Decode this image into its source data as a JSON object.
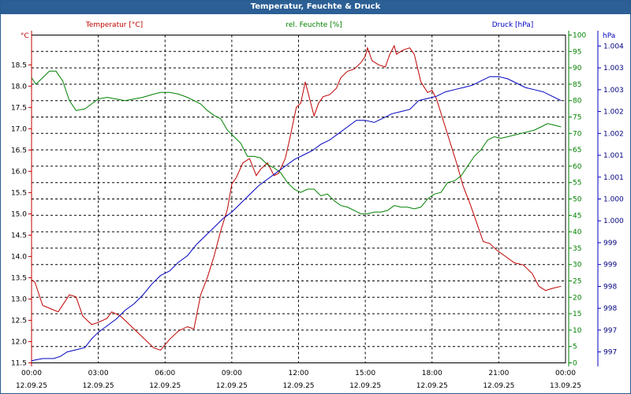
{
  "title": "Temperatur, Feuchte & Druck",
  "colors": {
    "temperature": "#c00000",
    "humidity": "#008000",
    "pressure": "#0000c0",
    "grid": "#000000",
    "titlebar": "#2b5f95"
  },
  "chart_data": {
    "type": "line",
    "title": "Temperatur, Feuchte & Druck",
    "x_ticks": [
      {
        "hour": 0,
        "time": "00:00",
        "date": "12.09.25"
      },
      {
        "hour": 3,
        "time": "03:00",
        "date": "12.09.25"
      },
      {
        "hour": 6,
        "time": "06:00",
        "date": "12.09.25"
      },
      {
        "hour": 9,
        "time": "09:00",
        "date": "12.09.25"
      },
      {
        "hour": 12,
        "time": "12:00",
        "date": "12.09.25"
      },
      {
        "hour": 15,
        "time": "15:00",
        "date": "12.09.25"
      },
      {
        "hour": 18,
        "time": "18:00",
        "date": "12.09.25"
      },
      {
        "hour": 21,
        "time": "21:00",
        "date": "12.09.25"
      },
      {
        "hour": 24,
        "time": "00:00",
        "date": "13.09.25"
      }
    ],
    "xlim": [
      0,
      24
    ],
    "axes": {
      "temperature": {
        "label": "Temperatur [°C]",
        "unit": "°C",
        "range": [
          11.5,
          19.2
        ],
        "ticks": [
          "11.5",
          "12.0",
          "12.5",
          "13.0",
          "13.5",
          "14.0",
          "14.5",
          "15.0",
          "15.5",
          "16.0",
          "16.5",
          "17.0",
          "17.5",
          "18.0",
          "18.5"
        ]
      },
      "humidity": {
        "label": "rel. Feuchte [%]",
        "unit": "%",
        "range": [
          0,
          100
        ],
        "ticks": [
          "0",
          "5",
          "10",
          "15",
          "20",
          "25",
          "30",
          "35",
          "40",
          "45",
          "50",
          "55",
          "60",
          "65",
          "70",
          "75",
          "80",
          "85",
          "90",
          "95",
          "100"
        ]
      },
      "pressure": {
        "label": "Druck [hPa]",
        "unit": "hPa",
        "range": [
          996.75,
          1004.25
        ],
        "ticks": [
          "997",
          "997",
          "998",
          "998",
          "999",
          "999",
          "1.000",
          "1.000",
          "1.001",
          "1.001",
          "1.002",
          "1.002",
          "1.003",
          "1.003",
          "1.004"
        ]
      }
    },
    "series": [
      {
        "name": "Temperatur",
        "axis": "temperature",
        "color": "#c00000",
        "points": [
          [
            0,
            13.45
          ],
          [
            0.15,
            13.4
          ],
          [
            0.5,
            12.85
          ],
          [
            1.2,
            12.7
          ],
          [
            1.7,
            13.1
          ],
          [
            2.0,
            13.05
          ],
          [
            2.3,
            12.6
          ],
          [
            2.7,
            12.4
          ],
          [
            3.0,
            12.45
          ],
          [
            3.4,
            12.55
          ],
          [
            3.6,
            12.7
          ],
          [
            4.0,
            12.6
          ],
          [
            4.4,
            12.4
          ],
          [
            5.0,
            12.1
          ],
          [
            5.5,
            11.85
          ],
          [
            5.8,
            11.8
          ],
          [
            6.2,
            12.05
          ],
          [
            6.6,
            12.25
          ],
          [
            7.0,
            12.35
          ],
          [
            7.3,
            12.3
          ],
          [
            7.6,
            13.1
          ],
          [
            7.9,
            13.5
          ],
          [
            8.2,
            14.0
          ],
          [
            8.5,
            14.6
          ],
          [
            8.8,
            15.1
          ],
          [
            9.0,
            15.7
          ],
          [
            9.2,
            15.85
          ],
          [
            9.5,
            16.2
          ],
          [
            9.8,
            16.3
          ],
          [
            10.1,
            15.9
          ],
          [
            10.3,
            16.05
          ],
          [
            10.6,
            16.2
          ],
          [
            10.9,
            15.9
          ],
          [
            11.1,
            15.95
          ],
          [
            11.4,
            16.3
          ],
          [
            11.6,
            16.75
          ],
          [
            11.9,
            17.5
          ],
          [
            12.1,
            17.6
          ],
          [
            12.3,
            18.1
          ],
          [
            12.5,
            17.7
          ],
          [
            12.7,
            17.3
          ],
          [
            12.9,
            17.6
          ],
          [
            13.1,
            17.75
          ],
          [
            13.4,
            17.8
          ],
          [
            13.7,
            17.95
          ],
          [
            13.9,
            18.2
          ],
          [
            14.2,
            18.35
          ],
          [
            14.5,
            18.4
          ],
          [
            14.8,
            18.55
          ],
          [
            15.0,
            18.7
          ],
          [
            15.1,
            18.9
          ],
          [
            15.3,
            18.6
          ],
          [
            15.6,
            18.5
          ],
          [
            15.9,
            18.45
          ],
          [
            16.1,
            18.75
          ],
          [
            16.3,
            18.95
          ],
          [
            16.4,
            18.75
          ],
          [
            16.7,
            18.85
          ],
          [
            17.0,
            18.9
          ],
          [
            17.2,
            18.75
          ],
          [
            17.5,
            18.1
          ],
          [
            17.8,
            17.85
          ],
          [
            18.0,
            17.9
          ],
          [
            18.2,
            17.7
          ],
          [
            18.5,
            17.2
          ],
          [
            18.8,
            16.7
          ],
          [
            19.1,
            16.2
          ],
          [
            19.4,
            15.65
          ],
          [
            19.7,
            15.25
          ],
          [
            20.0,
            14.8
          ],
          [
            20.3,
            14.35
          ],
          [
            20.6,
            14.3
          ],
          [
            20.9,
            14.15
          ],
          [
            21.3,
            14.0
          ],
          [
            21.7,
            13.85
          ],
          [
            22.1,
            13.8
          ],
          [
            22.5,
            13.6
          ],
          [
            22.8,
            13.3
          ],
          [
            23.1,
            13.2
          ],
          [
            23.4,
            13.25
          ],
          [
            23.8,
            13.3
          ]
        ]
      },
      {
        "name": "rel. Feuchte",
        "axis": "humidity",
        "color": "#008000",
        "points": [
          [
            0,
            87
          ],
          [
            0.2,
            85
          ],
          [
            0.5,
            87
          ],
          [
            0.8,
            89
          ],
          [
            1.1,
            89
          ],
          [
            1.4,
            86
          ],
          [
            1.7,
            80
          ],
          [
            2.0,
            77
          ],
          [
            2.4,
            77.5
          ],
          [
            2.7,
            79
          ],
          [
            3.0,
            80.5
          ],
          [
            3.4,
            81
          ],
          [
            3.8,
            80.5
          ],
          [
            4.2,
            80
          ],
          [
            4.6,
            80.5
          ],
          [
            5.0,
            81
          ],
          [
            5.5,
            82
          ],
          [
            5.8,
            82.5
          ],
          [
            6.2,
            82.5
          ],
          [
            6.6,
            82
          ],
          [
            7.0,
            81
          ],
          [
            7.3,
            80
          ],
          [
            7.6,
            79
          ],
          [
            7.9,
            77
          ],
          [
            8.2,
            75.5
          ],
          [
            8.5,
            74.5
          ],
          [
            8.8,
            71
          ],
          [
            9.1,
            69
          ],
          [
            9.4,
            67
          ],
          [
            9.7,
            63
          ],
          [
            10.0,
            63
          ],
          [
            10.3,
            62.5
          ],
          [
            10.6,
            60.5
          ],
          [
            10.9,
            59.5
          ],
          [
            11.2,
            58
          ],
          [
            11.5,
            55
          ],
          [
            11.8,
            53
          ],
          [
            12.1,
            52
          ],
          [
            12.4,
            53
          ],
          [
            12.7,
            53
          ],
          [
            13.0,
            51
          ],
          [
            13.3,
            51.5
          ],
          [
            13.6,
            49.5
          ],
          [
            13.9,
            48
          ],
          [
            14.2,
            47.5
          ],
          [
            14.5,
            46.5
          ],
          [
            14.8,
            45.5
          ],
          [
            15.1,
            45.5
          ],
          [
            15.4,
            46
          ],
          [
            15.7,
            46
          ],
          [
            16.0,
            46.5
          ],
          [
            16.3,
            48
          ],
          [
            16.6,
            47.5
          ],
          [
            16.9,
            47.5
          ],
          [
            17.2,
            47
          ],
          [
            17.5,
            47.5
          ],
          [
            17.8,
            50
          ],
          [
            18.1,
            51.5
          ],
          [
            18.4,
            52
          ],
          [
            18.7,
            55
          ],
          [
            19.0,
            55.5
          ],
          [
            19.3,
            57
          ],
          [
            19.6,
            60
          ],
          [
            19.9,
            63
          ],
          [
            20.2,
            65
          ],
          [
            20.5,
            68
          ],
          [
            20.8,
            69
          ],
          [
            21.1,
            68.5
          ],
          [
            21.4,
            69
          ],
          [
            21.7,
            69.5
          ],
          [
            22.0,
            70
          ],
          [
            22.3,
            70.5
          ],
          [
            22.6,
            71
          ],
          [
            22.9,
            72
          ],
          [
            23.2,
            73
          ],
          [
            23.5,
            72.5
          ],
          [
            23.8,
            72
          ]
        ]
      },
      {
        "name": "Druck",
        "axis": "pressure",
        "color": "#0000c0",
        "points": [
          [
            0,
            996.8
          ],
          [
            0.5,
            996.85
          ],
          [
            1.0,
            996.85
          ],
          [
            1.3,
            996.9
          ],
          [
            1.6,
            997.0
          ],
          [
            2.0,
            997.05
          ],
          [
            2.4,
            997.1
          ],
          [
            2.7,
            997.3
          ],
          [
            3.0,
            997.45
          ],
          [
            3.4,
            997.6
          ],
          [
            3.8,
            997.75
          ],
          [
            4.2,
            997.95
          ],
          [
            4.6,
            998.1
          ],
          [
            5.0,
            998.3
          ],
          [
            5.4,
            998.55
          ],
          [
            5.8,
            998.75
          ],
          [
            6.2,
            998.85
          ],
          [
            6.6,
            999.05
          ],
          [
            7.0,
            999.2
          ],
          [
            7.4,
            999.45
          ],
          [
            7.8,
            999.65
          ],
          [
            8.2,
            999.85
          ],
          [
            8.6,
            1000.05
          ],
          [
            9.0,
            1000.2
          ],
          [
            9.4,
            1000.4
          ],
          [
            9.8,
            1000.6
          ],
          [
            10.2,
            1000.8
          ],
          [
            10.6,
            1000.95
          ],
          [
            11.0,
            1001.1
          ],
          [
            11.4,
            1001.25
          ],
          [
            11.8,
            1001.4
          ],
          [
            12.2,
            1001.5
          ],
          [
            12.6,
            1001.6
          ],
          [
            13.0,
            1001.75
          ],
          [
            13.4,
            1001.85
          ],
          [
            13.8,
            1002.0
          ],
          [
            14.2,
            1002.15
          ],
          [
            14.6,
            1002.3
          ],
          [
            15.0,
            1002.3
          ],
          [
            15.4,
            1002.25
          ],
          [
            15.8,
            1002.35
          ],
          [
            16.2,
            1002.45
          ],
          [
            16.6,
            1002.5
          ],
          [
            17.0,
            1002.55
          ],
          [
            17.4,
            1002.75
          ],
          [
            17.8,
            1002.8
          ],
          [
            18.2,
            1002.85
          ],
          [
            18.6,
            1002.95
          ],
          [
            19.0,
            1003.0
          ],
          [
            19.4,
            1003.05
          ],
          [
            19.8,
            1003.1
          ],
          [
            20.2,
            1003.2
          ],
          [
            20.6,
            1003.3
          ],
          [
            21.0,
            1003.3
          ],
          [
            21.4,
            1003.25
          ],
          [
            21.8,
            1003.15
          ],
          [
            22.2,
            1003.05
          ],
          [
            22.6,
            1003.0
          ],
          [
            23.0,
            1002.95
          ],
          [
            23.4,
            1002.85
          ],
          [
            23.8,
            1002.75
          ]
        ]
      }
    ]
  }
}
